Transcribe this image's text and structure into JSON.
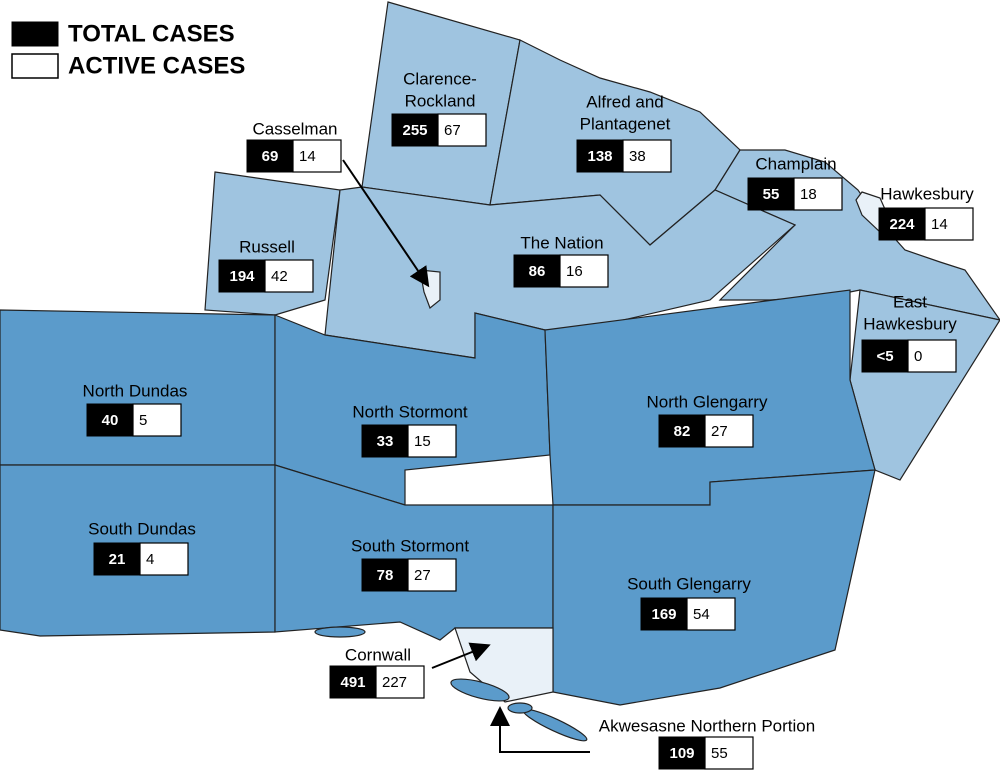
{
  "legend": {
    "total": "TOTAL CASES",
    "active": "ACTIVE CASES"
  },
  "regions": [
    {
      "name": [
        "Casselman"
      ],
      "total": 69,
      "active": 14
    },
    {
      "name": [
        "Clarence-",
        "Rockland"
      ],
      "total": 255,
      "active": 67
    },
    {
      "name": [
        "Alfred and",
        "Plantagenet"
      ],
      "total": 138,
      "active": 38
    },
    {
      "name": [
        "Champlain"
      ],
      "total": 55,
      "active": 18
    },
    {
      "name": [
        "Hawkesbury"
      ],
      "total": 224,
      "active": 14
    },
    {
      "name": [
        "Russell"
      ],
      "total": 194,
      "active": 42
    },
    {
      "name": [
        "The Nation"
      ],
      "total": 86,
      "active": 16
    },
    {
      "name": [
        "East",
        "Hawkesbury"
      ],
      "total": "<5",
      "active": 0
    },
    {
      "name": [
        "North Dundas"
      ],
      "total": 40,
      "active": 5
    },
    {
      "name": [
        "North Stormont"
      ],
      "total": 33,
      "active": 15
    },
    {
      "name": [
        "North Glengarry"
      ],
      "total": 82,
      "active": 27
    },
    {
      "name": [
        "South Dundas"
      ],
      "total": 21,
      "active": 4
    },
    {
      "name": [
        "South Stormont"
      ],
      "total": 78,
      "active": 27
    },
    {
      "name": [
        "South Glengarry"
      ],
      "total": 169,
      "active": 54
    },
    {
      "name": [
        "Cornwall"
      ],
      "total": 491,
      "active": 227
    },
    {
      "name": [
        "Akwesasne Northern Portion"
      ],
      "total": 109,
      "active": 55
    }
  ]
}
